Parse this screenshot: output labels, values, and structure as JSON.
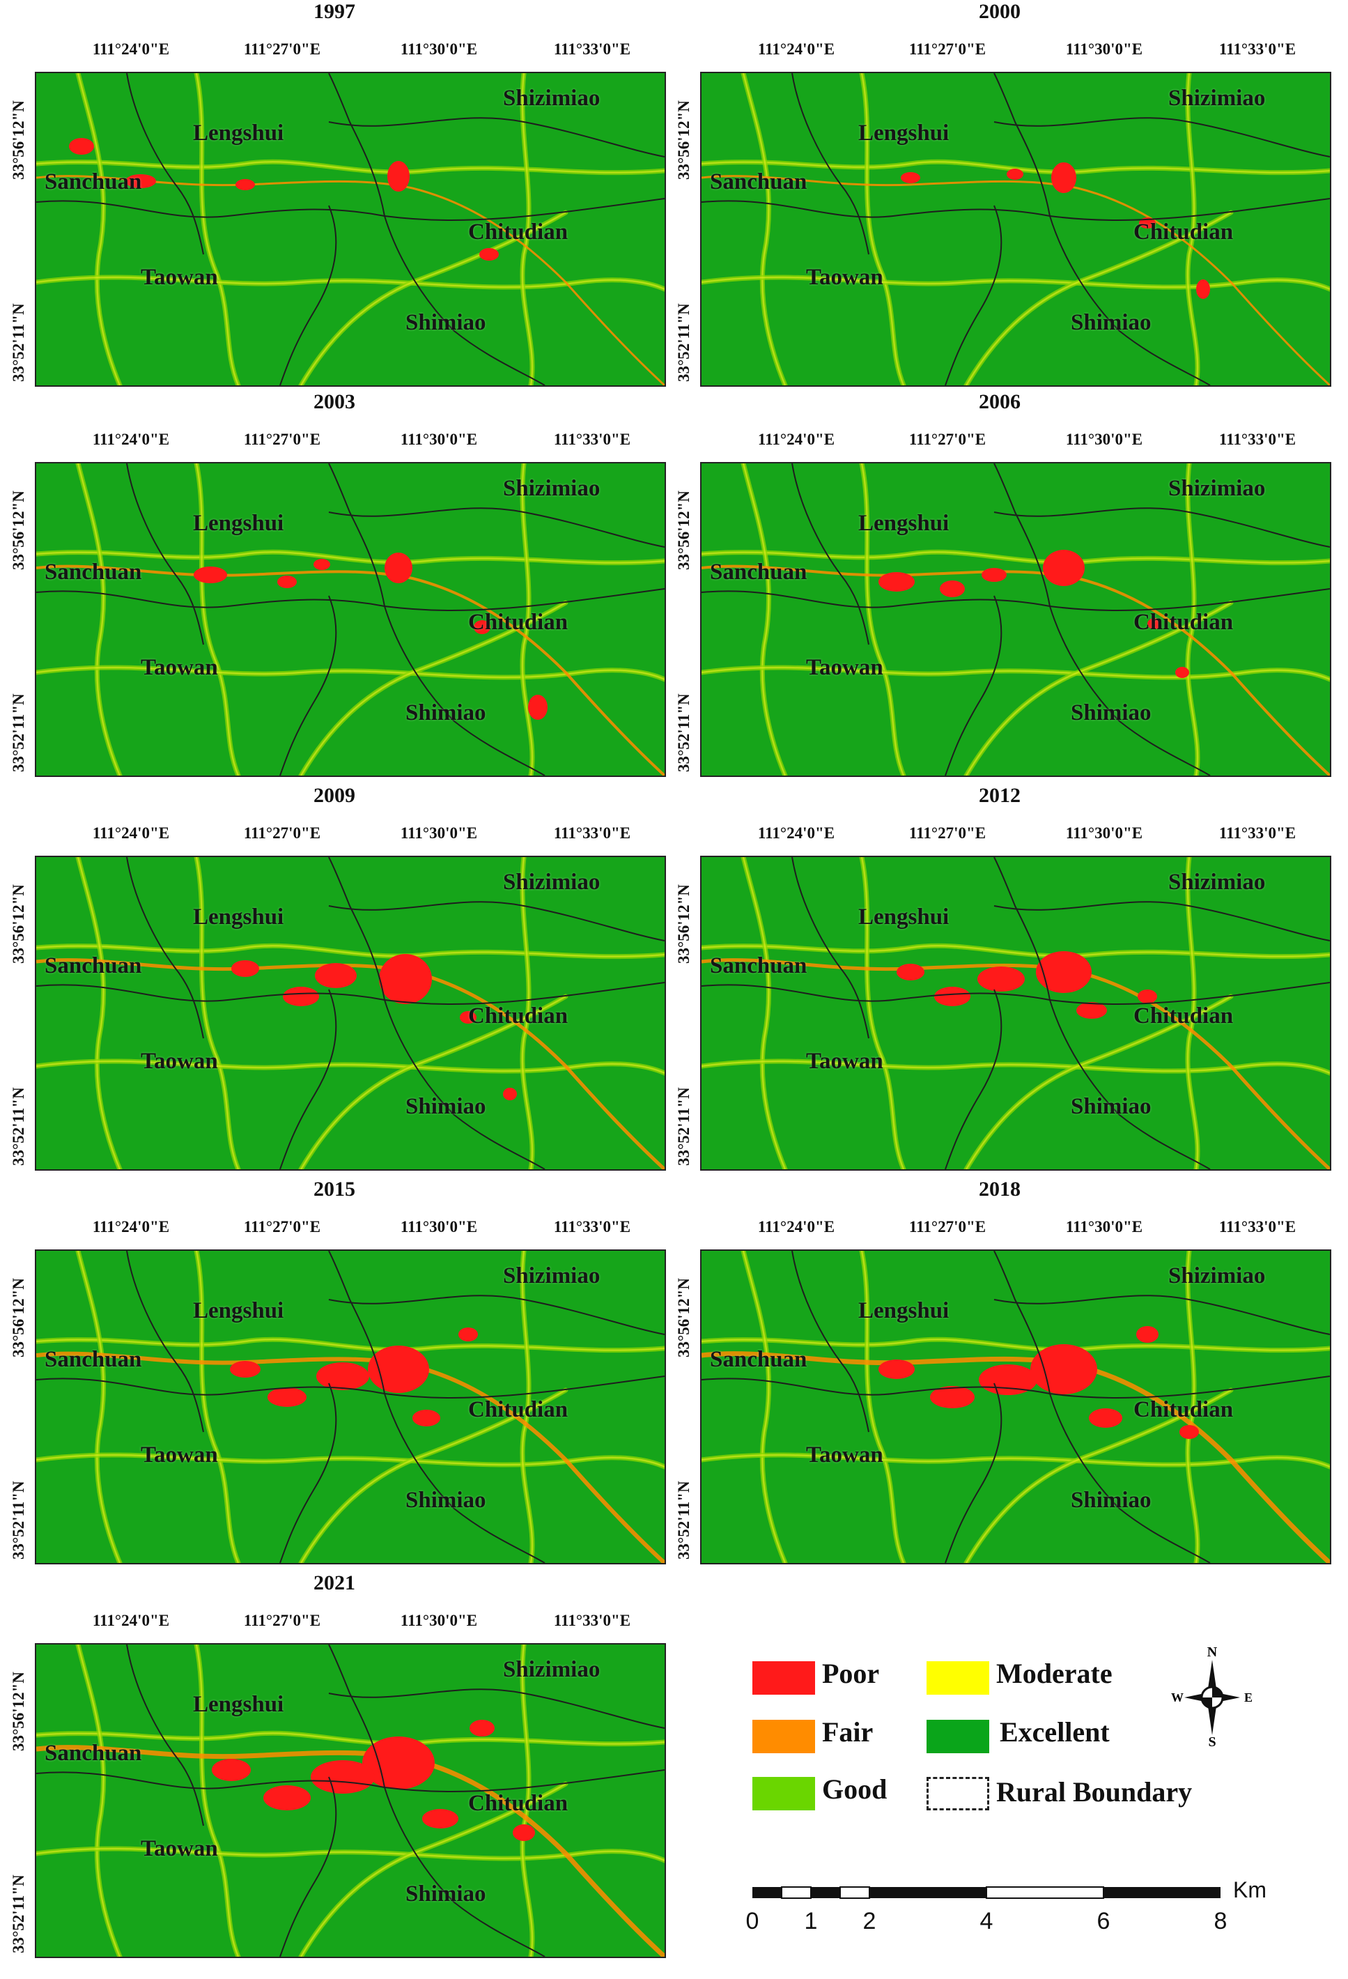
{
  "labels": {
    "lon": [
      "111°24'0\"E",
      "111°27'0\"E",
      "111°30'0\"E",
      "111°33'0\"E"
    ],
    "lat_top": "33°56'12\"N",
    "lat_bottom": "33°52'11\"N",
    "towns": {
      "shizimiao": "Shizimiao",
      "lengshui": "Lengshui",
      "sanchuan": "Sanchuan",
      "chitudian": "Chitudian",
      "taowan": "Taowan",
      "shimiao": "Shimiao"
    }
  },
  "panels": [
    {
      "year": "1997",
      "level": 1
    },
    {
      "year": "2000",
      "level": 1
    },
    {
      "year": "2003",
      "level": 2
    },
    {
      "year": "2006",
      "level": 2
    },
    {
      "year": "2009",
      "level": 3
    },
    {
      "year": "2012",
      "level": 3
    },
    {
      "year": "2015",
      "level": 4
    },
    {
      "year": "2018",
      "level": 5
    },
    {
      "year": "2021",
      "level": 5
    }
  ],
  "legend": {
    "items": [
      {
        "label": "Poor",
        "color": "#ff1a1a"
      },
      {
        "label": "Moderate",
        "color": "#ffff00"
      },
      {
        "label": "Fair",
        "color": "#ff8c00"
      },
      {
        "label": "Excellent",
        "color": "#0aa51a"
      },
      {
        "label": "Good",
        "color": "#6ad600"
      },
      {
        "label": "Rural Boundary",
        "color": "#222222"
      }
    ],
    "compass": {
      "n": "N",
      "s": "S",
      "e": "E",
      "w": "W"
    }
  },
  "scale_bar": {
    "unit": "Km",
    "ticks": [
      "0",
      "1",
      "2",
      "4",
      "6",
      "8"
    ]
  }
}
